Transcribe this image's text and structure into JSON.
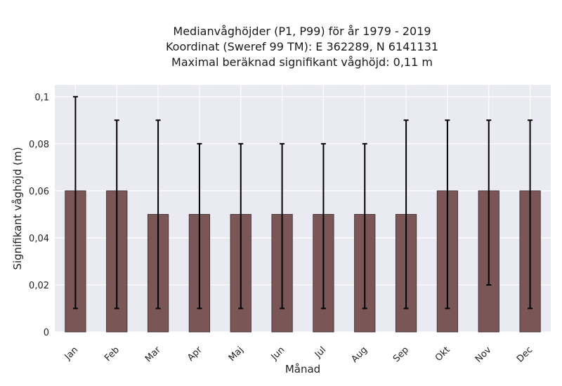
{
  "chart_data": {
    "type": "bar",
    "title_lines": [
      "Medianvåghöjder (P1, P99) för år 1979 - 2019",
      "Koordinat (Sweref 99 TM): E 362289, N 6141131",
      "Maximal beräknad signifikant våghöjd: 0,11 m"
    ],
    "xlabel": "Månad",
    "ylabel": "Signifikant våghöjd (m)",
    "categories": [
      "Jan",
      "Feb",
      "Mar",
      "Apr",
      "Maj",
      "Jun",
      "Jul",
      "Aug",
      "Sep",
      "Okt",
      "Nov",
      "Dec"
    ],
    "values": [
      0.06,
      0.06,
      0.05,
      0.05,
      0.05,
      0.05,
      0.05,
      0.05,
      0.05,
      0.06,
      0.06,
      0.06
    ],
    "error_low": [
      0.01,
      0.01,
      0.01,
      0.01,
      0.01,
      0.01,
      0.01,
      0.01,
      0.01,
      0.01,
      0.02,
      0.01
    ],
    "error_high": [
      0.1,
      0.09,
      0.09,
      0.08,
      0.08,
      0.08,
      0.08,
      0.08,
      0.09,
      0.09,
      0.09,
      0.09
    ],
    "ylim": [
      0,
      0.105
    ],
    "yticks": [
      0,
      0.02,
      0.04,
      0.06,
      0.08,
      0.1
    ],
    "ytick_labels": [
      "0",
      "0,02",
      "0,04",
      "0,06",
      "0,08",
      "0,1"
    ],
    "grid": true,
    "colors": {
      "bar": "#7b5656",
      "bar_edge": "#3a2a2a",
      "error": "#000000",
      "background": "#eaeaf2",
      "grid": "#ffffff"
    }
  }
}
